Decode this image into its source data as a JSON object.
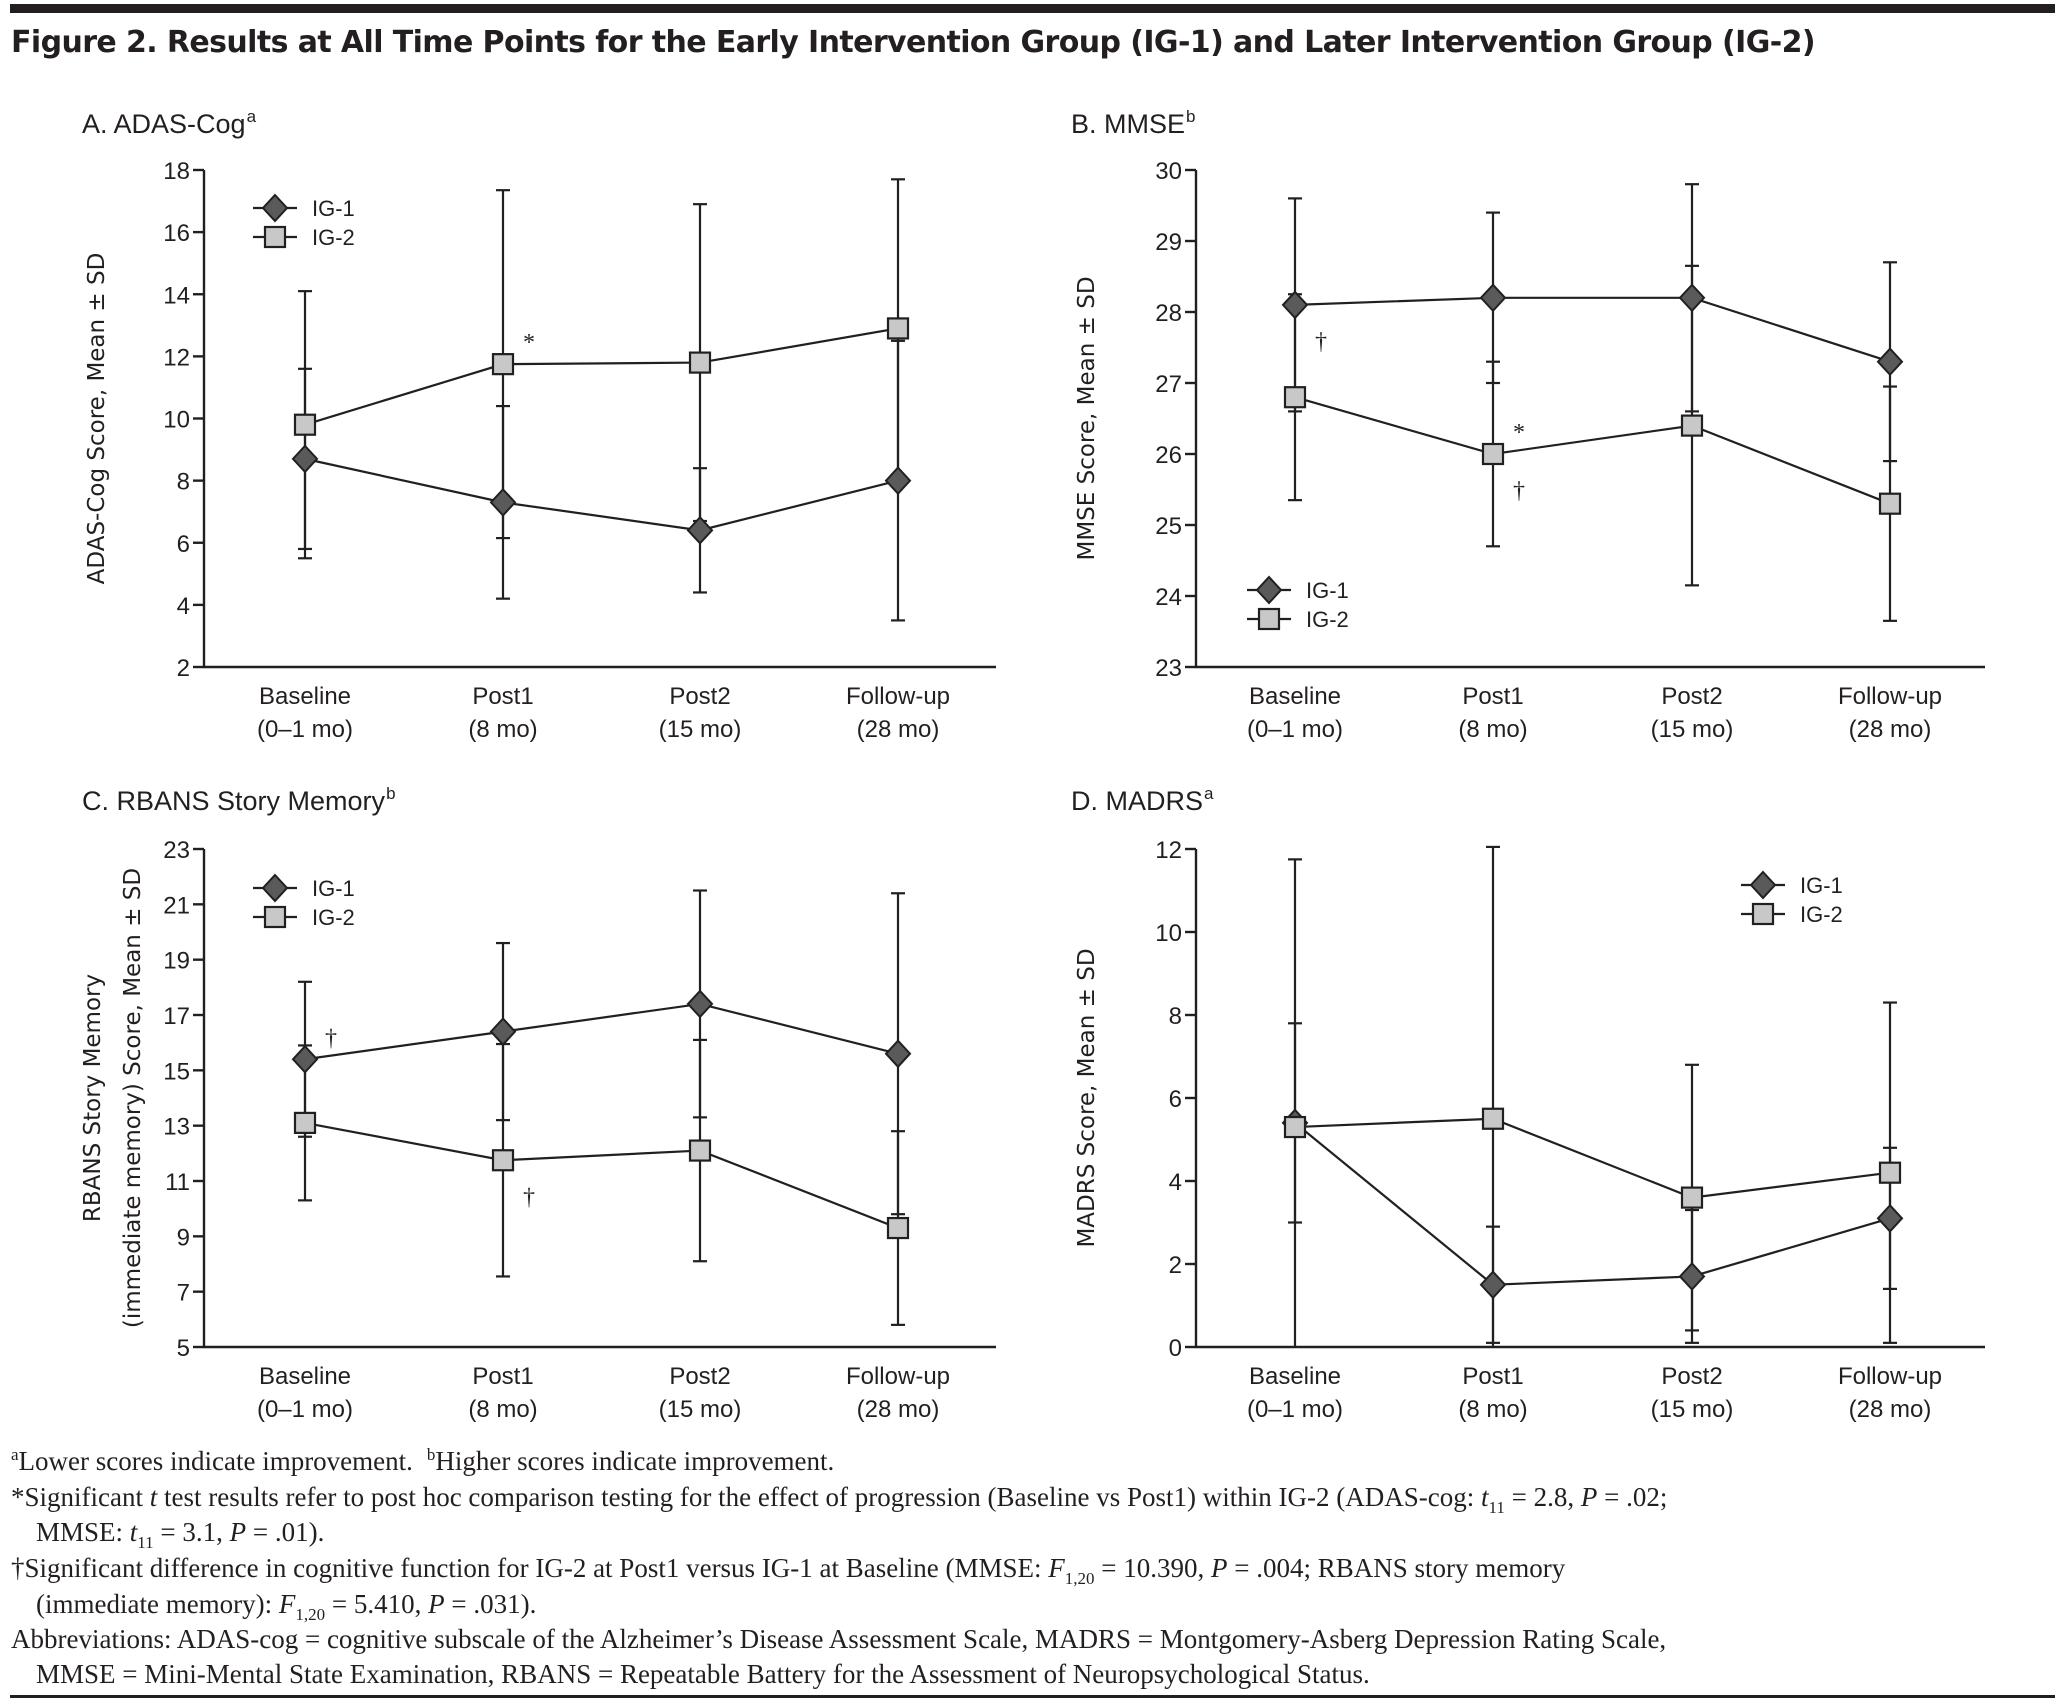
{
  "figure": {
    "title": "Figure 2. Results at All Time Points for the Early Intervention Group (IG-1) and Later Intervention Group (IG-2)"
  },
  "colors": {
    "ink": "#231f20",
    "ig1_marker": "#5a5a5a",
    "ig2_marker": "#c8c8c8"
  },
  "chart_data": [
    {
      "id": "A",
      "type": "line",
      "title": "A. ADAS-Cog",
      "title_sup": "a",
      "xlabel": "",
      "ylabel": "ADAS-Cog Score, Mean ± SD",
      "ylim": [
        2,
        18
      ],
      "yticks": [
        2,
        4,
        6,
        8,
        10,
        12,
        14,
        16,
        18
      ],
      "categories": [
        "Baseline",
        "Post1",
        "Post2",
        "Follow-up"
      ],
      "category_sublabels": [
        "(0–1 mo)",
        "(8 mo)",
        "(15 mo)",
        "(28 mo)"
      ],
      "legend": "top-left",
      "grid": false,
      "series": [
        {
          "name": "IG-1",
          "marker": "diamond",
          "values": [
            8.7,
            7.3,
            6.4,
            8.0
          ],
          "sd": [
            2.9,
            3.1,
            2.0,
            4.5
          ]
        },
        {
          "name": "IG-2",
          "marker": "square",
          "values": [
            9.8,
            11.75,
            11.8,
            12.9
          ],
          "sd": [
            4.3,
            5.6,
            5.1,
            4.8
          ]
        }
      ],
      "annotations": [
        {
          "text": "*",
          "category": "Post1",
          "series": "IG-2",
          "position": "above-right"
        }
      ]
    },
    {
      "id": "B",
      "type": "line",
      "title": "B. MMSE",
      "title_sup": "b",
      "xlabel": "",
      "ylabel": "MMSE Score, Mean ± SD",
      "ylim": [
        23,
        30
      ],
      "yticks": [
        23,
        24,
        25,
        26,
        27,
        28,
        29,
        30
      ],
      "categories": [
        "Baseline",
        "Post1",
        "Post2",
        "Follow-up"
      ],
      "category_sublabels": [
        "(0–1 mo)",
        "(8 mo)",
        "(15 mo)",
        "(28 mo)"
      ],
      "legend": "bottom-left",
      "grid": false,
      "series": [
        {
          "name": "IG-1",
          "marker": "diamond",
          "values": [
            28.1,
            28.2,
            28.2,
            27.3
          ],
          "sd": [
            1.5,
            1.2,
            1.6,
            1.4
          ]
        },
        {
          "name": "IG-2",
          "marker": "square",
          "values": [
            26.8,
            26.0,
            26.4,
            25.3
          ],
          "sd": [
            1.45,
            1.3,
            2.25,
            1.65
          ]
        }
      ],
      "annotations": [
        {
          "text": "†",
          "category": "Baseline",
          "series": "IG-1",
          "position": "below-right"
        },
        {
          "text": "*",
          "category": "Post1",
          "series": "IG-2",
          "position": "above-right"
        },
        {
          "text": "†",
          "category": "Post1",
          "series": "IG-2",
          "position": "below-right"
        }
      ]
    },
    {
      "id": "C",
      "type": "line",
      "title": "C. RBANS Story Memory",
      "title_sup": "b",
      "xlabel": "",
      "ylabel": "RBANS Story Memory",
      "ylabel_line2": "(immediate memory) Score, Mean ± SD",
      "ylim": [
        5,
        23
      ],
      "yticks": [
        5,
        7,
        9,
        11,
        13,
        15,
        17,
        19,
        21,
        23
      ],
      "categories": [
        "Baseline",
        "Post1",
        "Post2",
        "Follow-up"
      ],
      "category_sublabels": [
        "(0–1 mo)",
        "(8 mo)",
        "(15 mo)",
        "(28 mo)"
      ],
      "legend": "top-left",
      "grid": false,
      "series": [
        {
          "name": "IG-1",
          "marker": "diamond",
          "values": [
            15.4,
            16.4,
            17.4,
            15.6
          ],
          "sd": [
            2.8,
            3.2,
            4.1,
            5.8
          ]
        },
        {
          "name": "IG-2",
          "marker": "square",
          "values": [
            13.1,
            11.75,
            12.1,
            9.3
          ],
          "sd": [
            2.8,
            4.2,
            4.0,
            3.5
          ]
        }
      ],
      "annotations": [
        {
          "text": "†",
          "category": "Baseline",
          "series": "IG-1",
          "position": "above-right"
        },
        {
          "text": "†",
          "category": "Post1",
          "series": "IG-2",
          "position": "below-right"
        }
      ]
    },
    {
      "id": "D",
      "type": "line",
      "title": "D. MADRS",
      "title_sup": "a",
      "xlabel": "",
      "ylabel": "MADRS Score, Mean ± SD",
      "ylim": [
        0,
        12
      ],
      "yticks": [
        0,
        2,
        4,
        6,
        8,
        10,
        12
      ],
      "categories": [
        "Baseline",
        "Post1",
        "Post2",
        "Follow-up"
      ],
      "category_sublabels": [
        "(0–1 mo)",
        "(8 mo)",
        "(15 mo)",
        "(28 mo)"
      ],
      "legend": "top-right",
      "grid": false,
      "series": [
        {
          "name": "IG-1",
          "marker": "diamond",
          "values": [
            5.4,
            1.5,
            1.7,
            3.1
          ],
          "sd": [
            2.4,
            1.4,
            1.6,
            1.7
          ]
        },
        {
          "name": "IG-2",
          "marker": "square",
          "values": [
            5.3,
            5.5,
            3.6,
            4.2
          ],
          "sd": [
            6.45,
            6.55,
            3.2,
            4.1
          ]
        }
      ],
      "annotations": []
    }
  ],
  "footnotes": {
    "a_marker": "a",
    "a_text": "Lower scores indicate improvement.",
    "b_marker": "b",
    "b_text": "Higher scores indicate improvement.",
    "star_line1_a": "*Significant ",
    "star_line1_t": "t",
    "star_line1_b": " test results refer to post hoc comparison testing for the effect of progression (Baseline vs Post1) within IG-2 (ADAS-cog: ",
    "star_line1_t2": "t",
    "star_line1_sub": "11",
    "star_line1_c": " = 2.8, ",
    "star_line1_p": "P",
    "star_line1_d": " = .02;",
    "star_line2_a": "MMSE: ",
    "star_line2_t": "t",
    "star_line2_sub": "11",
    "star_line2_b": " = 3.1, ",
    "star_line2_p": "P",
    "star_line2_c": " = .01).",
    "dagger_line1_a": "†Significant difference in cognitive function for IG-2 at Post1 versus IG-1 at Baseline (MMSE: ",
    "dagger_line1_f": "F",
    "dagger_line1_sub": "1,20",
    "dagger_line1_b": " = 10.390, ",
    "dagger_line1_p": "P",
    "dagger_line1_c": " = .004; RBANS story memory",
    "dagger_line2_a": "(immediate memory): ",
    "dagger_line2_f": "F",
    "dagger_line2_sub": "1,20",
    "dagger_line2_b": " = 5.410, ",
    "dagger_line2_p": "P",
    "dagger_line2_c": " = .031).",
    "abbr_line1": "Abbreviations: ADAS-cog = cognitive subscale of the Alzheimer’s Disease Assessment Scale, MADRS = Montgomery-Asberg Depression Rating Scale,",
    "abbr_line2": "MMSE = Mini-Mental State Examination, RBANS = Repeatable Battery for the Assessment of Neuropsychological Status."
  }
}
